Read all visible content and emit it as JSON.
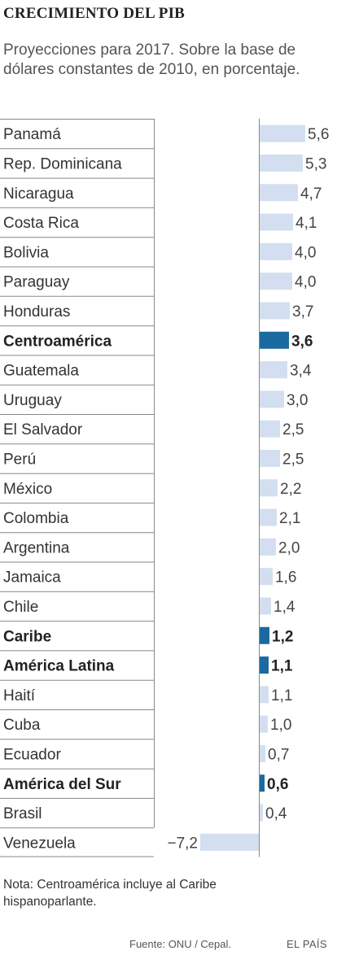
{
  "header": {
    "title": "CRECIMIENTO DEL PIB",
    "subtitle": "Proyecciones para 2017. Sobre la base de dólares constantes de 2010, en porcentaje."
  },
  "footer": {
    "note": "Nota: Centroamérica incluye al Caribe hispanoparlante.",
    "source": "Fuente: ONU / Cepal.",
    "brand": "EL PAÍS"
  },
  "colors": {
    "bar": "#d3dff0",
    "bar_highlight": "#1a6a9f",
    "grid": "#888888",
    "label": "#333333"
  },
  "chart_data": {
    "type": "bar",
    "orientation": "horizontal",
    "title": "CRECIMIENTO DEL PIB",
    "categories": [
      "Panamá",
      "Rep. Dominicana",
      "Nicaragua",
      "Costa Rica",
      "Bolivia",
      "Paraguay",
      "Honduras",
      "Centroamérica",
      "Guatemala",
      "Uruguay",
      "El Salvador",
      "Perú",
      "México",
      "Colombia",
      "Argentina",
      "Jamaica",
      "Chile",
      "Caribe",
      "América Latina",
      "Haití",
      "Cuba",
      "Ecuador",
      "América del Sur",
      "Brasil",
      "Venezuela"
    ],
    "values": [
      5.6,
      5.3,
      4.7,
      4.1,
      4.0,
      4.0,
      3.7,
      3.6,
      3.4,
      3.0,
      2.5,
      2.5,
      2.2,
      2.1,
      2.0,
      1.6,
      1.4,
      1.2,
      1.1,
      1.1,
      1.0,
      0.7,
      0.6,
      0.4,
      -7.2
    ],
    "value_labels": [
      "5,6",
      "5,3",
      "4,7",
      "4,1",
      "4,0",
      "4,0",
      "3,7",
      "3,6",
      "3,4",
      "3,0",
      "2,5",
      "2,5",
      "2,2",
      "2,1",
      "2,0",
      "1,6",
      "1,4",
      "1,2",
      "1,1",
      "1,1",
      "1,0",
      "0,7",
      "0,6",
      "0,4",
      "−7,2"
    ],
    "highlight": [
      "Centroamérica",
      "Caribe",
      "América Latina",
      "América del Sur"
    ],
    "xlim": [
      -7.2,
      5.6
    ]
  }
}
